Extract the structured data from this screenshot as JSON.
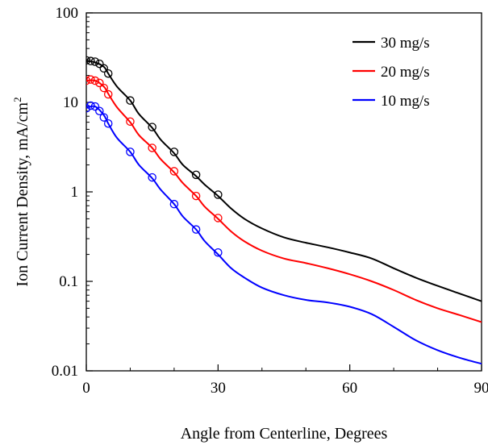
{
  "chart_data": {
    "type": "line",
    "title": "",
    "xlabel": "Angle from Centerline, Degrees",
    "ylabel": "Ion Current Density, mA/cm",
    "ylabel_sup": "2",
    "xlim": [
      0,
      90
    ],
    "ylim": [
      0.01,
      100
    ],
    "yscale": "log",
    "grid": false,
    "legend_position": "top-right",
    "xticks": [
      0,
      30,
      60,
      90
    ],
    "xtick_labels": [
      "0",
      "30",
      "60",
      "90"
    ],
    "yticks": [
      0.01,
      0.1,
      1,
      10,
      100
    ],
    "ytick_labels": [
      "0.01",
      "0.1",
      "1",
      "10",
      "100"
    ],
    "series": [
      {
        "name": "30 mg/s",
        "color": "#000000",
        "curve": {
          "x": [
            0,
            2,
            4,
            5,
            7,
            10,
            12,
            15,
            17,
            20,
            22,
            25,
            27,
            30,
            33,
            36,
            40,
            45,
            50,
            55,
            60,
            65,
            70,
            75,
            80,
            85,
            90
          ],
          "y": [
            29,
            28,
            25,
            21,
            15,
            10.5,
            7.4,
            5.2,
            3.8,
            2.7,
            2.0,
            1.5,
            1.2,
            0.9,
            0.65,
            0.5,
            0.39,
            0.31,
            0.27,
            0.24,
            0.21,
            0.18,
            0.14,
            0.11,
            0.089,
            0.073,
            0.06
          ]
        },
        "markers": {
          "x": [
            0,
            1,
            2,
            3,
            4,
            5,
            10,
            15,
            20,
            25,
            30
          ],
          "y": [
            29.5,
            29,
            28.5,
            27,
            24,
            21,
            10.5,
            5.3,
            2.8,
            1.55,
            0.93
          ]
        }
      },
      {
        "name": "20 mg/s",
        "color": "#ff0000",
        "curve": {
          "x": [
            0,
            2,
            4,
            5,
            7,
            10,
            12,
            15,
            17,
            20,
            22,
            25,
            27,
            30,
            33,
            36,
            40,
            45,
            50,
            55,
            60,
            65,
            70,
            75,
            80,
            85,
            90
          ],
          "y": [
            17.5,
            17.5,
            15,
            12.5,
            8.8,
            6.0,
            4.3,
            3.1,
            2.3,
            1.65,
            1.25,
            0.9,
            0.68,
            0.5,
            0.36,
            0.28,
            0.22,
            0.18,
            0.16,
            0.14,
            0.12,
            0.1,
            0.08,
            0.062,
            0.05,
            0.042,
            0.035
          ]
        },
        "markers": {
          "x": [
            0,
            1,
            2,
            3,
            4,
            5,
            10,
            15,
            20,
            25,
            30
          ],
          "y": [
            17.5,
            18,
            17.5,
            16.5,
            14.5,
            12.3,
            6.1,
            3.1,
            1.7,
            0.9,
            0.51
          ]
        }
      },
      {
        "name": "10 mg/s",
        "color": "#0000ff",
        "curve": {
          "x": [
            0,
            2,
            4,
            5,
            7,
            10,
            12,
            15,
            17,
            20,
            22,
            25,
            27,
            30,
            33,
            36,
            40,
            45,
            50,
            55,
            60,
            65,
            70,
            75,
            80,
            85,
            90
          ],
          "y": [
            8.7,
            9.0,
            7.2,
            5.8,
            4.0,
            2.8,
            2.0,
            1.42,
            1.05,
            0.73,
            0.53,
            0.38,
            0.28,
            0.2,
            0.14,
            0.11,
            0.085,
            0.07,
            0.062,
            0.058,
            0.052,
            0.043,
            0.031,
            0.022,
            0.017,
            0.014,
            0.012
          ]
        },
        "markers": {
          "x": [
            0,
            1,
            2,
            3,
            4,
            5,
            10,
            15,
            20,
            25,
            30
          ],
          "y": [
            8.6,
            9.2,
            9.0,
            8.0,
            6.8,
            5.8,
            2.8,
            1.45,
            0.73,
            0.38,
            0.21
          ]
        }
      }
    ]
  }
}
